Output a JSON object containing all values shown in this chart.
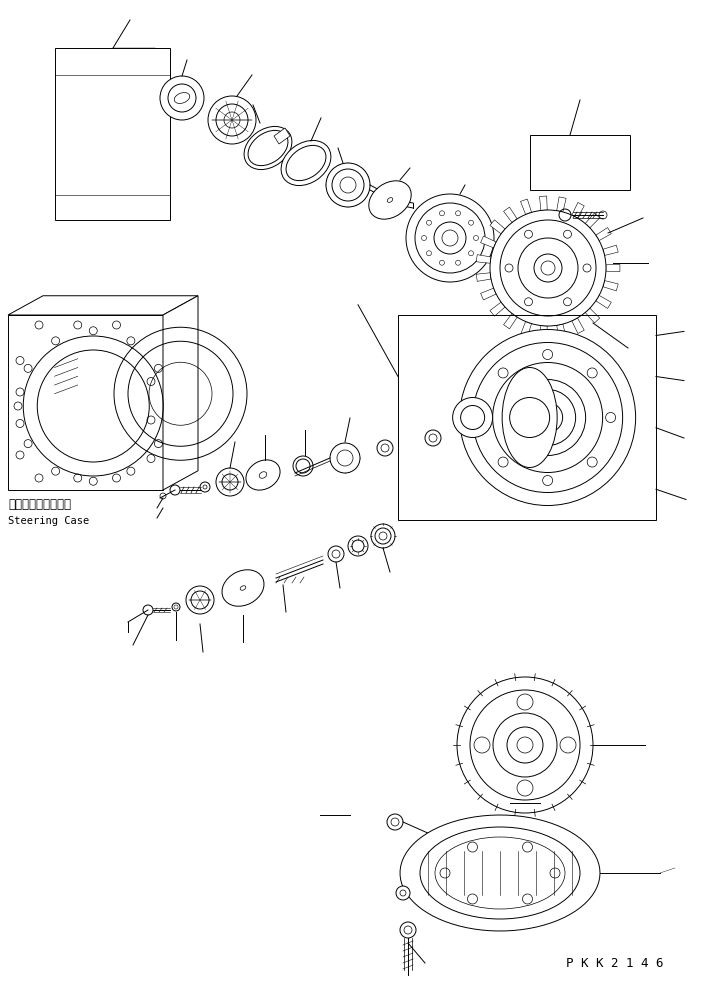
{
  "background_color": "#ffffff",
  "line_color": "#000000",
  "lw": 0.7,
  "figsize": [
    7.04,
    9.81
  ],
  "dpi": 100,
  "watermark": "P K K 2 1 4 6",
  "label_jp": "ステアリングケース",
  "label_en": "Steering Case"
}
